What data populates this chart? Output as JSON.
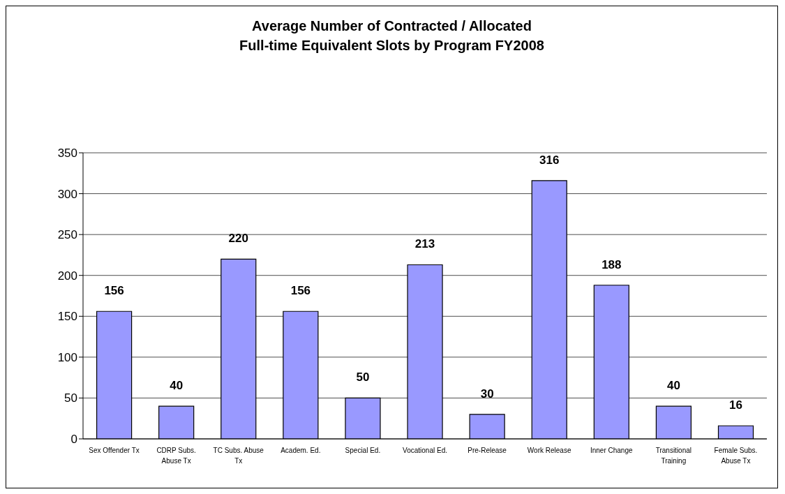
{
  "chart_data": {
    "type": "bar",
    "title": "Average Number of Contracted / Allocated\nFull-time Equivalent Slots by Program FY2008",
    "categories": [
      "Sex Offender Tx",
      "CDRP Subs. Abuse Tx",
      "TC Subs. Abuse Tx",
      "Academ. Ed.",
      "Special Ed.",
      "Vocational Ed.",
      "Pre-Release",
      "Work Release",
      "Inner Change",
      "Transitional Training",
      "Female Subs. Abuse Tx"
    ],
    "values": [
      156,
      40,
      220,
      156,
      50,
      213,
      30,
      316,
      188,
      40,
      16
    ],
    "color": "#9999ff",
    "ylim": [
      0,
      350
    ],
    "yticks": [
      0,
      50,
      100,
      150,
      200,
      250,
      300,
      350
    ],
    "grid": "y",
    "data_labels": true,
    "legend": false
  }
}
